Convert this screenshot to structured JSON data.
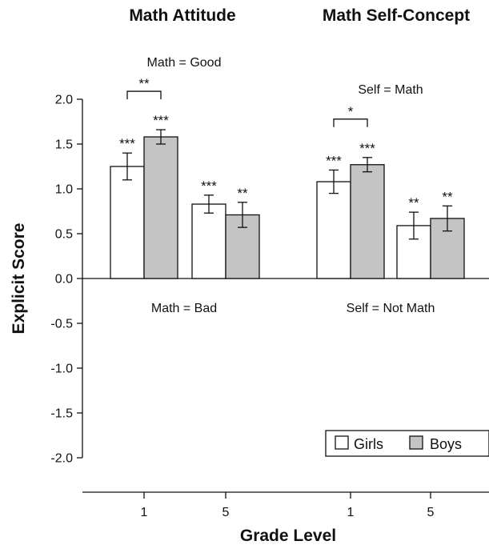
{
  "colors": {
    "girls": "#ffffff",
    "boys": "#c4c4c4",
    "ink": "#111111"
  },
  "chart_data": {
    "type": "bar",
    "ylabel": "Explicit Score",
    "xlabel": "Grade Level",
    "ylim": [
      -2.0,
      2.0
    ],
    "yticks": [
      "2.0",
      "1.5",
      "1.0",
      "0.5",
      "0.0",
      "-0.5",
      "-1.0",
      "-1.5",
      "-2.0"
    ],
    "ytick_values": [
      2.0,
      1.5,
      1.0,
      0.5,
      0.0,
      -0.5,
      -1.0,
      -1.5,
      -2.0
    ],
    "legend": {
      "placement": "bottom-right",
      "entries": [
        "Girls",
        "Boys"
      ]
    },
    "panels": [
      {
        "title": "Math Attitude",
        "top_label": "Math = Good",
        "bottom_label": "Math = Bad",
        "categories": [
          "1",
          "5"
        ],
        "series": [
          {
            "name": "Girls",
            "values": [
              1.25,
              0.83
            ],
            "err": [
              0.15,
              0.1
            ],
            "sig": [
              "***",
              "***"
            ]
          },
          {
            "name": "Boys",
            "values": [
              1.58,
              0.71
            ],
            "err": [
              0.08,
              0.14
            ],
            "sig": [
              "***",
              "**"
            ]
          }
        ],
        "comparison": {
          "category_index": 0,
          "label": "**"
        }
      },
      {
        "title": "Math Self-Concept",
        "top_label": "Self = Math",
        "bottom_label": "Self = Not Math",
        "categories": [
          "1",
          "5"
        ],
        "series": [
          {
            "name": "Girls",
            "values": [
              1.08,
              0.59
            ],
            "err": [
              0.13,
              0.15
            ],
            "sig": [
              "***",
              "**"
            ]
          },
          {
            "name": "Boys",
            "values": [
              1.27,
              0.67
            ],
            "err": [
              0.08,
              0.14
            ],
            "sig": [
              "***",
              "**"
            ]
          }
        ],
        "comparison": {
          "category_index": 0,
          "label": "*"
        }
      }
    ]
  }
}
